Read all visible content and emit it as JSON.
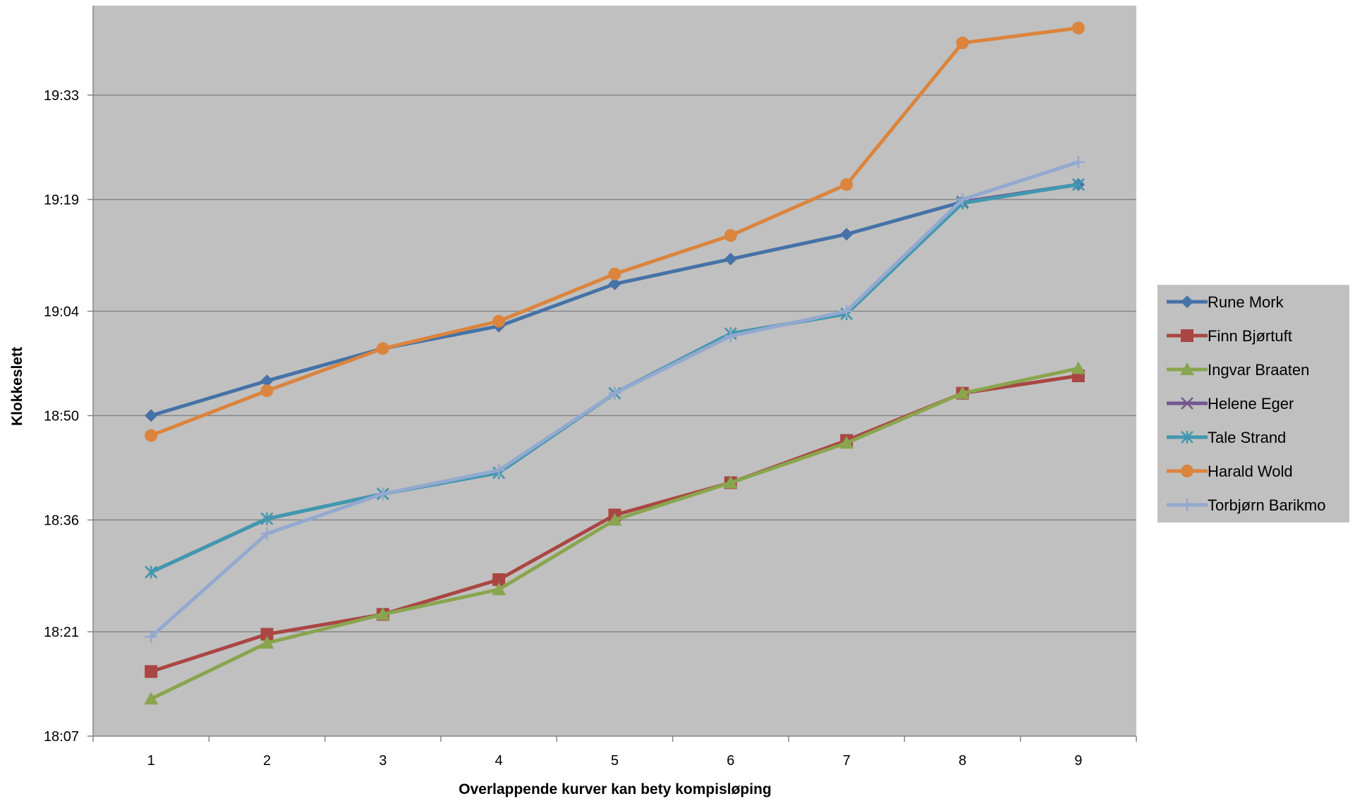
{
  "chart_data": {
    "type": "line",
    "title": "",
    "xlabel": "Overlappende kurver kan bety kompisløping",
    "ylabel": "Klokkeslett",
    "categories": [
      "1",
      "2",
      "3",
      "4",
      "5",
      "6",
      "7",
      "8",
      "9"
    ],
    "y_ticks": [
      "18:07",
      "18:21",
      "18:36",
      "18:50",
      "19:04",
      "19:19",
      "19:33"
    ],
    "ylim": [
      "18:07",
      "19:45"
    ],
    "grid": true,
    "legend_position": "right",
    "plot_background": "#c0c0c0",
    "series": [
      {
        "name": "Rune Mork",
        "color": "#4572a7",
        "marker": "diamond",
        "values": [
          "18:50",
          "18:54:40",
          "18:59",
          "19:02",
          "19:07:40",
          "19:11",
          "19:14:20",
          "19:18:40",
          "19:21"
        ]
      },
      {
        "name": "Finn Bjørtuft",
        "color": "#aa4643",
        "marker": "square",
        "values": [
          "18:15:40",
          "18:20:40",
          "18:23:20",
          "18:28",
          "18:36:40",
          "18:41",
          "18:46:40",
          "18:53",
          "18:55:20"
        ]
      },
      {
        "name": "Ingvar Braaten",
        "color": "#89a54e",
        "marker": "triangle",
        "values": [
          "18:12",
          "18:19:30",
          "18:23:20",
          "18:26:40",
          "18:36",
          "18:41",
          "18:46:20",
          "18:53",
          "18:56:20"
        ]
      },
      {
        "name": "Helene Eger",
        "color": "#71588f",
        "marker": "x",
        "values": [
          "18:29",
          "18:36:10",
          "18:39:30",
          "18:42:20",
          "18:53",
          "19:01",
          "19:03:40",
          "19:18:40",
          "19:21"
        ]
      },
      {
        "name": "Tale Strand",
        "color": "#4198af",
        "marker": "asterisk",
        "values": [
          "18:29",
          "18:36:10",
          "18:39:30",
          "18:42:20",
          "18:53",
          "19:01",
          "19:03:40",
          "19:18:30",
          "19:21"
        ]
      },
      {
        "name": "Harald Wold",
        "color": "#db843d",
        "marker": "circle",
        "values": [
          "18:47:20",
          "18:53:20",
          "18:59",
          "19:02:40",
          "19:09",
          "19:14:10",
          "19:21",
          "19:40",
          "19:42"
        ]
      },
      {
        "name": "Torbjørn Barikmo",
        "color": "#93a9cf",
        "marker": "plus",
        "values": [
          "18:20:20",
          "18:34:10",
          "18:39:30",
          "18:42:40",
          "18:53",
          "19:00:40",
          "19:04",
          "19:19",
          "19:24"
        ]
      }
    ]
  }
}
